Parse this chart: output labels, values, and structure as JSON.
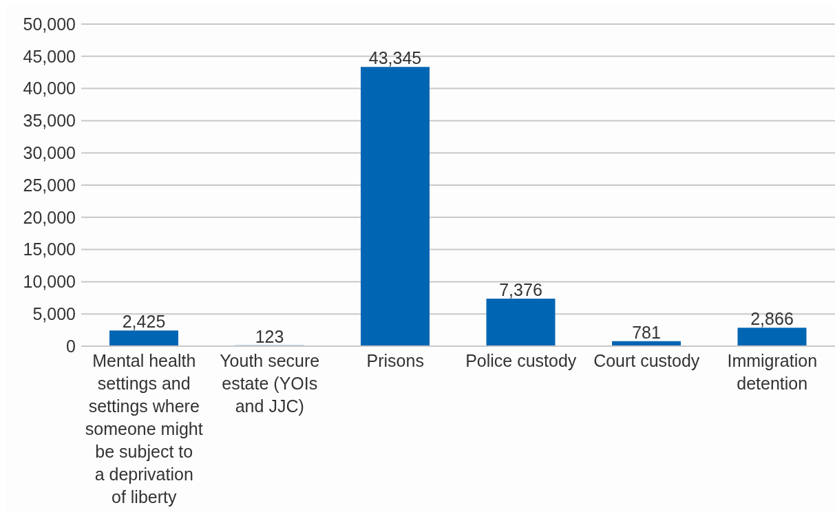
{
  "chart_data": {
    "type": "bar",
    "categories": [
      "Mental health settings and settings where someone might be subject to a deprivation of liberty",
      "Youth secure estate (YOIs and JJC)",
      "Prisons",
      "Police custody",
      "Court custody",
      "Immigration detention"
    ],
    "values": [
      2425,
      123,
      43345,
      7376,
      781,
      2866
    ],
    "value_labels": [
      "2,425",
      "123",
      "43,345",
      "7,376",
      "781",
      "2,866"
    ],
    "color": "#0066b3",
    "ylim": [
      0,
      50000
    ],
    "yticks": [
      0,
      {
        "value": 5000,
        "label": "5,000"
      },
      {
        "value": 10000,
        "label": "10,000"
      },
      {
        "value": 15000,
        "label": "15,000"
      },
      {
        "value": 20000,
        "label": "20,000"
      },
      {
        "value": 25000,
        "label": "25,000"
      },
      {
        "value": 30000,
        "label": "30,000"
      },
      {
        "value": 35000,
        "label": "35,000"
      },
      {
        "value": 40000,
        "label": "40,000"
      },
      {
        "value": 45000,
        "label": "45,000"
      },
      {
        "value": 50000,
        "label": "50,000"
      }
    ],
    "grid": "y"
  }
}
